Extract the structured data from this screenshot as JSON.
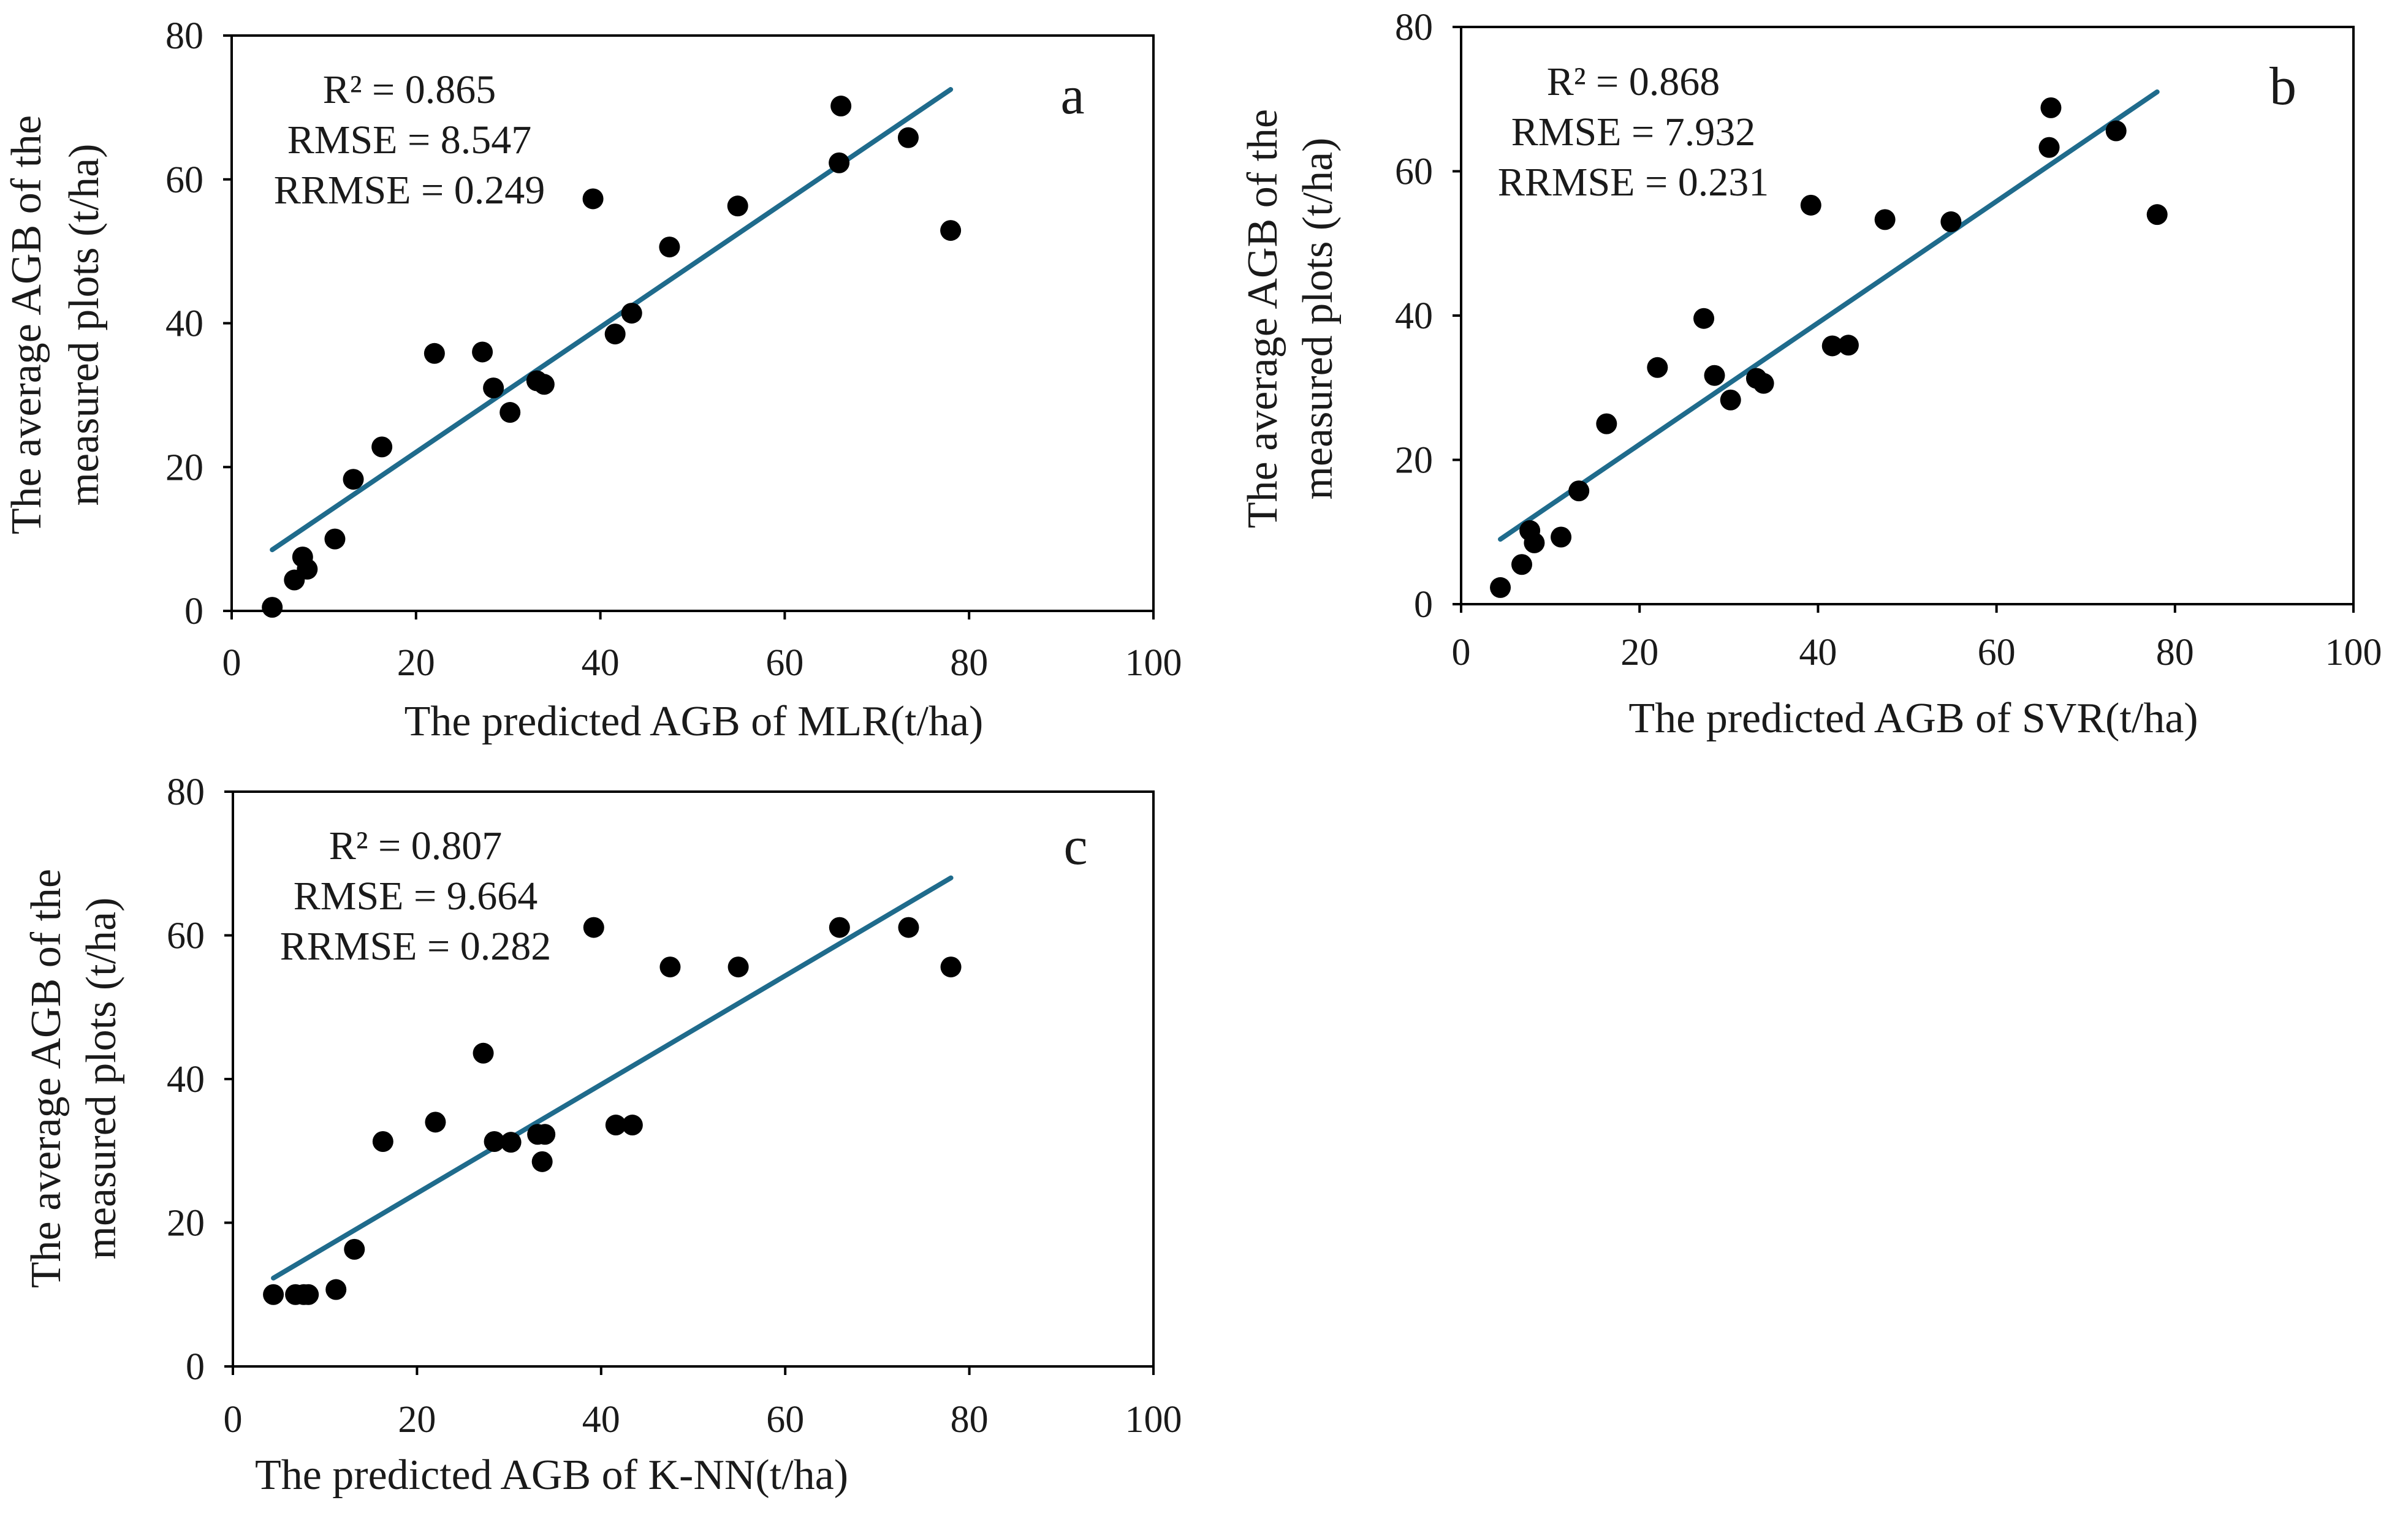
{
  "chart_data": [
    {
      "type": "scatter",
      "panel_label": "a",
      "xlabel": "The predicted AGB of MLR(t/ha)",
      "ylabel_lines": [
        "The average AGB of the",
        "measured plots (t/ha)"
      ],
      "xlim": [
        0,
        100
      ],
      "ylim": [
        0,
        80
      ],
      "x_ticks": [
        0,
        20,
        40,
        60,
        80,
        100
      ],
      "y_ticks": [
        0,
        20,
        40,
        60,
        80
      ],
      "stats": [
        "R² = 0.865",
        "RMSE = 8.547",
        "RRMSE = 0.249"
      ],
      "trendline": {
        "x": [
          4.4,
          78
        ],
        "y": [
          8.5,
          72.5
        ],
        "color": "#1f6b8c"
      },
      "points": {
        "x": [
          4.4,
          6.8,
          7.7,
          8.2,
          11.2,
          13.2,
          16.3,
          22,
          27.2,
          28.4,
          30.2,
          33.1,
          33.9,
          39.2,
          41.6,
          43.4,
          47.5,
          54.9,
          65.9,
          66.1,
          73.4,
          78
        ],
        "y": [
          0.5,
          4.3,
          7.5,
          5.8,
          10,
          18.3,
          22.8,
          35.8,
          36,
          31,
          27.6,
          32,
          31.5,
          57.3,
          38.5,
          41.4,
          50.6,
          56.3,
          62.3,
          70.2,
          65.8,
          52.9
        ]
      }
    },
    {
      "type": "scatter",
      "panel_label": "b",
      "xlabel": "The predicted AGB of SVR(t/ha)",
      "ylabel_lines": [
        "The average AGB of the",
        "measured plots (t/ha)"
      ],
      "xlim": [
        0,
        100
      ],
      "ylim": [
        0,
        80
      ],
      "x_ticks": [
        0,
        20,
        40,
        60,
        80,
        100
      ],
      "y_ticks": [
        0,
        20,
        40,
        60,
        80
      ],
      "stats": [
        "R² = 0.868",
        "RMSE = 7.932",
        "RRMSE = 0.231"
      ],
      "trendline": {
        "x": [
          4.4,
          78
        ],
        "y": [
          9,
          71
        ],
        "color": "#1f6b8c"
      },
      "points": {
        "x": [
          4.4,
          6.8,
          7.7,
          8.2,
          11.2,
          13.2,
          16.3,
          22,
          27.2,
          28.4,
          30.2,
          33.1,
          33.9,
          39.2,
          41.6,
          43.4,
          47.5,
          54.9,
          65.9,
          66.1,
          73.4,
          78
        ],
        "y": [
          2.3,
          5.5,
          10.2,
          8.5,
          9.3,
          15.7,
          25,
          32.8,
          39.6,
          31.7,
          28.3,
          31.3,
          30.6,
          55.3,
          35.8,
          35.9,
          53.3,
          53,
          63.3,
          68.8,
          65.6,
          54
        ]
      }
    },
    {
      "type": "scatter",
      "panel_label": "c",
      "xlabel": "The predicted AGB of K-NN(t/ha)",
      "ylabel_lines": [
        "The average AGB of the",
        "measured plots (t/ha)"
      ],
      "xlim": [
        0,
        100
      ],
      "ylim": [
        0,
        80
      ],
      "x_ticks": [
        0,
        20,
        40,
        60,
        80,
        100
      ],
      "y_ticks": [
        0,
        20,
        40,
        60,
        80
      ],
      "stats": [
        "R² = 0.807",
        "RMSE = 9.664",
        "RRMSE = 0.282"
      ],
      "trendline": {
        "x": [
          4.4,
          78
        ],
        "y": [
          12.3,
          68
        ],
        "color": "#1f6b8c"
      },
      "points": {
        "x": [
          4.4,
          6.8,
          7.7,
          8.2,
          11.2,
          13.2,
          16.3,
          22,
          27.2,
          28.4,
          30.2,
          33.1,
          33.9,
          33.6,
          39.2,
          41.6,
          43.4,
          47.5,
          54.9,
          65.9,
          73.4,
          78
        ],
        "y": [
          10,
          10,
          10,
          10,
          10.7,
          16.3,
          31.3,
          34,
          43.6,
          31.3,
          31.2,
          32.3,
          32.3,
          28.5,
          61.1,
          33.6,
          33.6,
          55.6,
          55.6,
          61.1,
          61.1,
          55.6
        ]
      }
    }
  ]
}
